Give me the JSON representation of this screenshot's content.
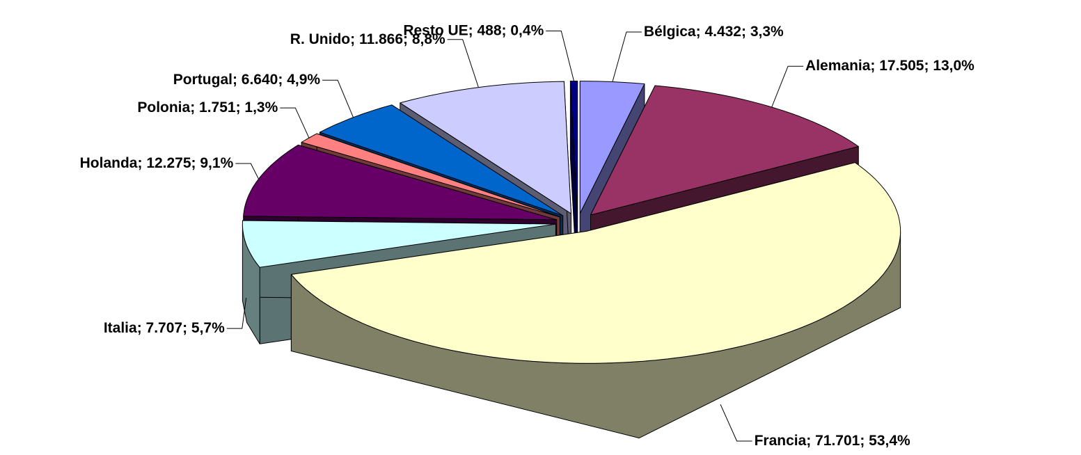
{
  "chart_data": {
    "type": "pie",
    "categories": [
      "Bélgica",
      "Alemania",
      "Francia",
      "Italia",
      "Holanda",
      "Polonia",
      "Portugal",
      "R. Unido",
      "Resto UE"
    ],
    "values": [
      4432,
      17505,
      71701,
      7707,
      12275,
      1751,
      6640,
      11866,
      488
    ],
    "value_labels": [
      "4.432",
      "17.505",
      "71.701",
      "7.707",
      "12.275",
      "1.751",
      "6.640",
      "11.866",
      "488"
    ],
    "percent_labels": [
      "3,3%",
      "13,0%",
      "53,4%",
      "5,7%",
      "9,1%",
      "1,3%",
      "4,9%",
      "8,8%",
      "0,4%"
    ],
    "label_separator": "; ",
    "colors": [
      "#9999ff",
      "#993366",
      "#ffffcc",
      "#ccffff",
      "#660066",
      "#ff8080",
      "#0066cc",
      "#ccccff",
      "#000080"
    ]
  }
}
